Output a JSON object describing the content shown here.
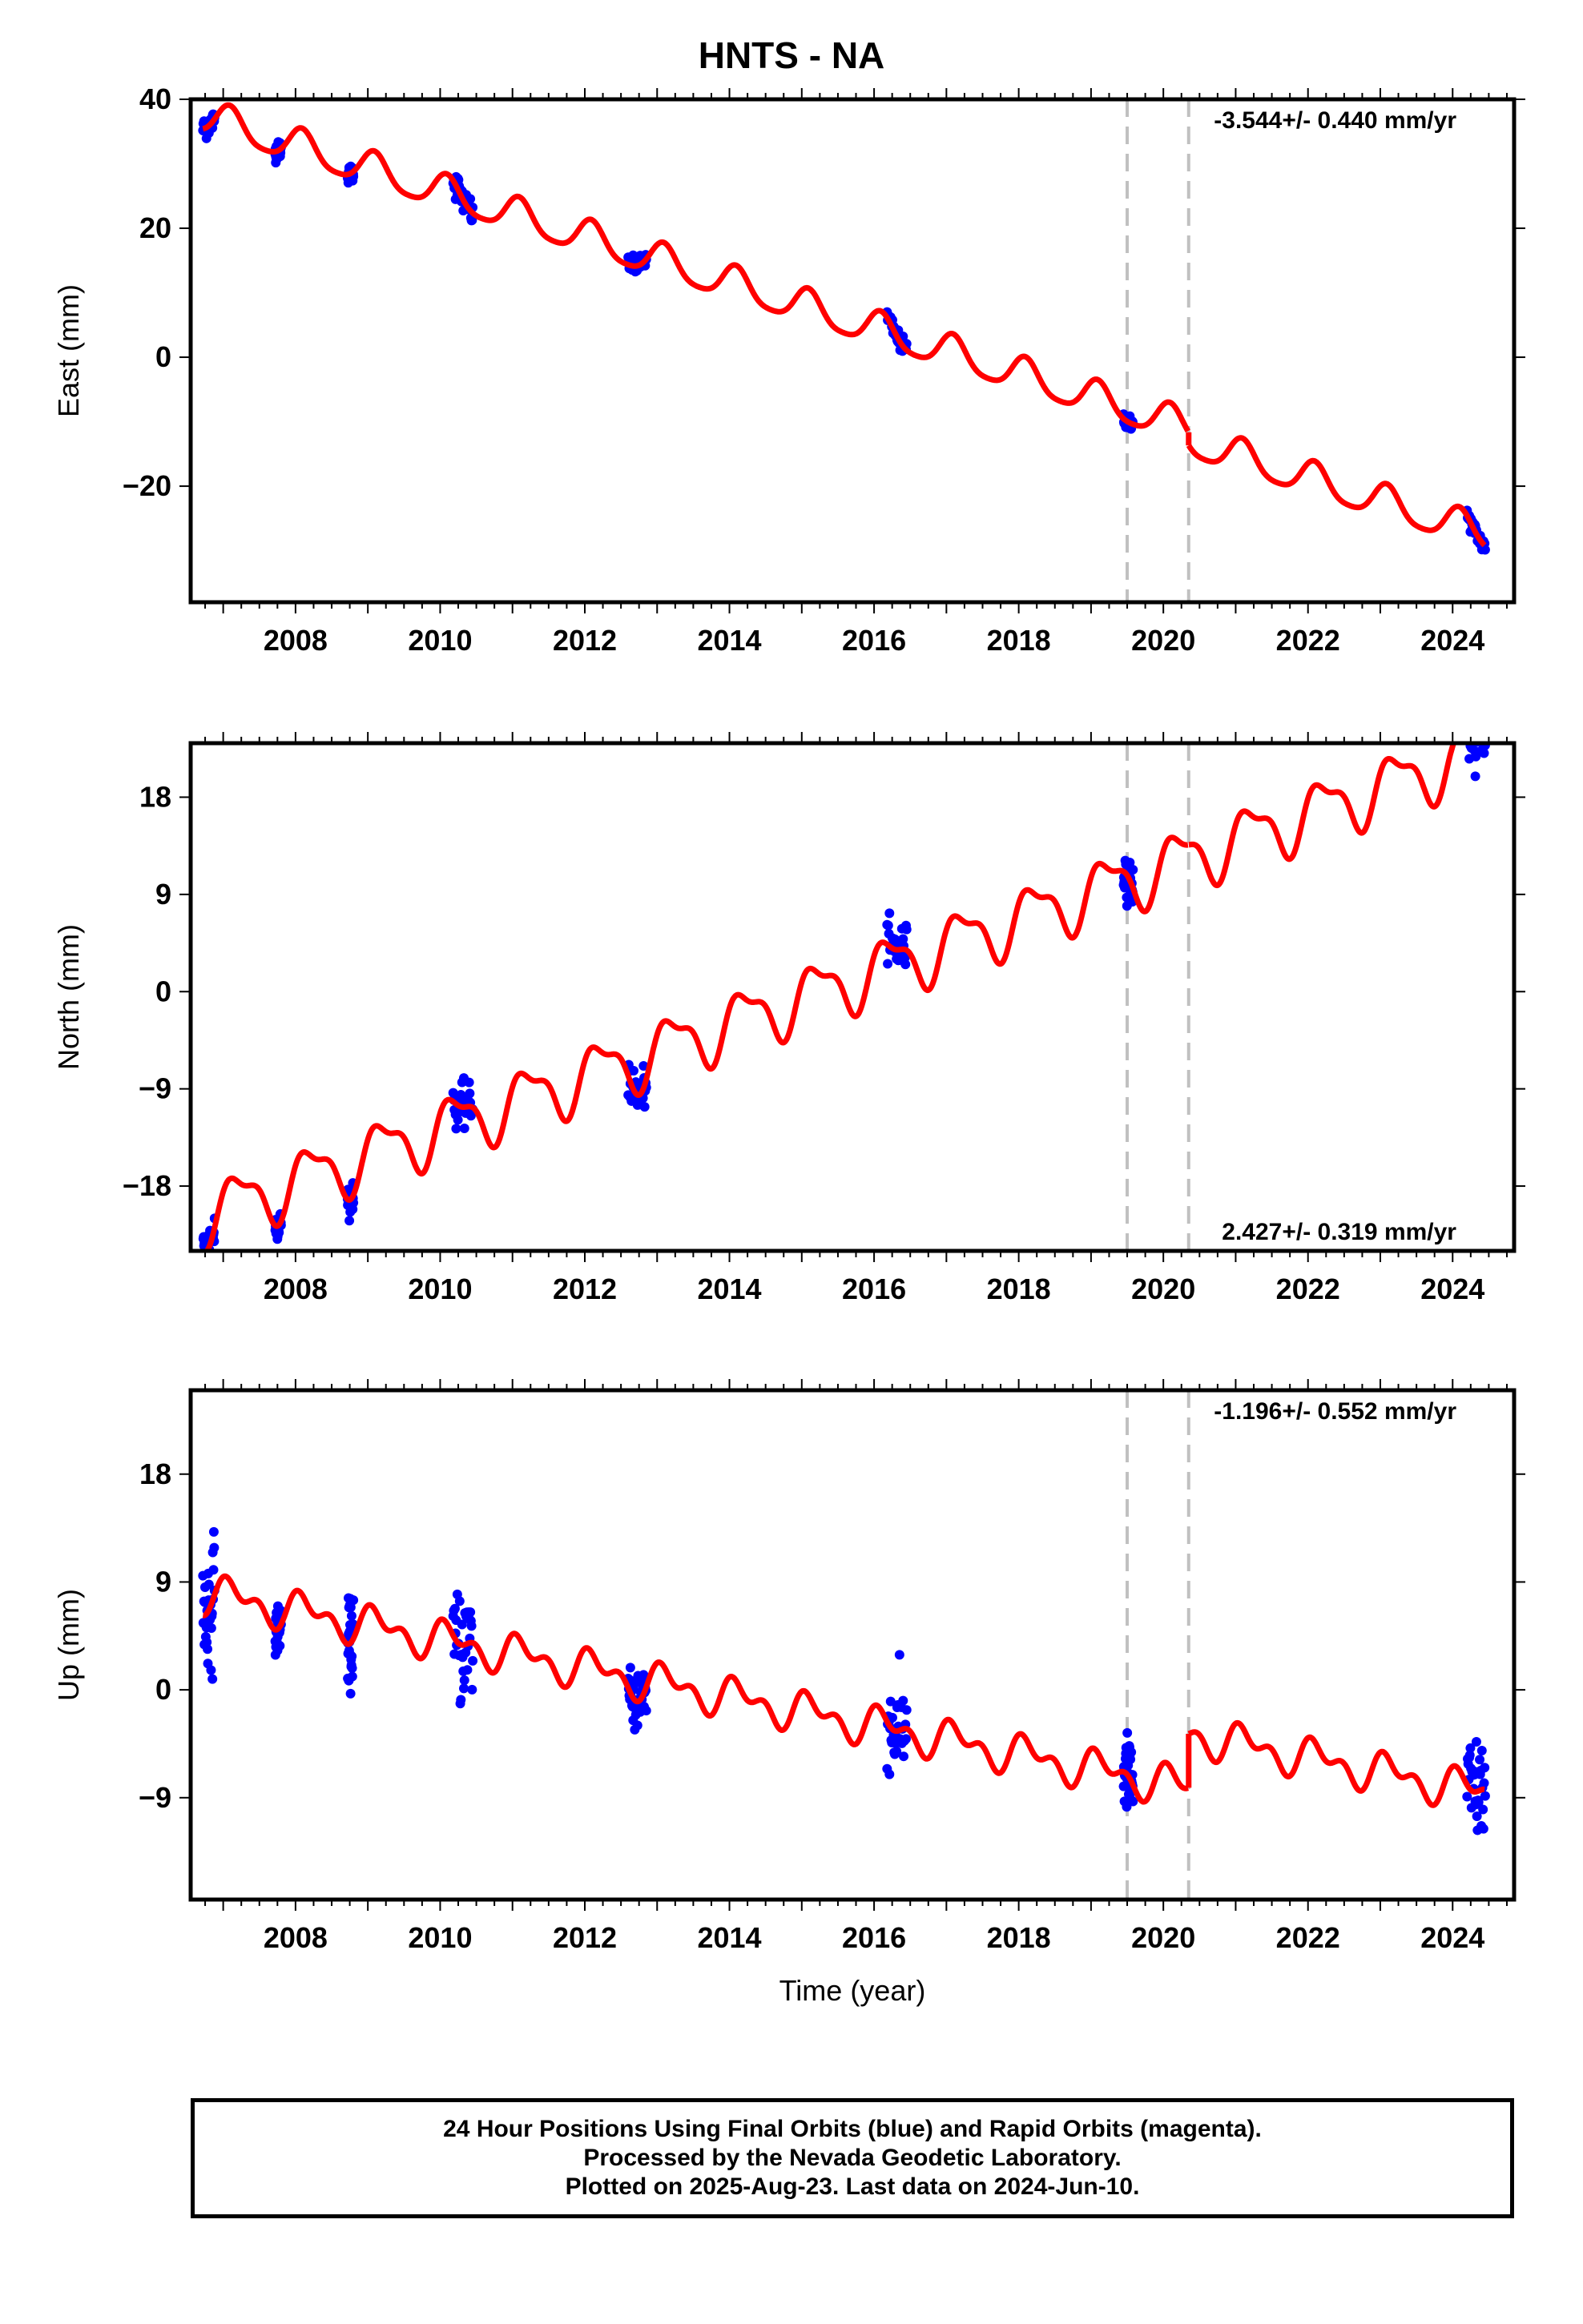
{
  "title": "HNTS - NA",
  "colors": {
    "model": "#ff0000",
    "final_orbits": "#0000ff",
    "breaks": "#c0c0c0",
    "frame": "#000000"
  },
  "chart_data": [
    {
      "type": "scatter",
      "component": "east",
      "ylabel": "East (mm)",
      "xlabel": "",
      "xlim": [
        2006.55,
        2024.85
      ],
      "ylim": [
        -38,
        40
      ],
      "xticks": [
        2008,
        2010,
        2012,
        2014,
        2016,
        2018,
        2020,
        2022,
        2024
      ],
      "xtick_labels": [
        "2008",
        "2010",
        "2012",
        "2014",
        "2016",
        "2018",
        "2020",
        "2022",
        "2024"
      ],
      "yticks": [
        -20,
        0,
        20,
        40
      ],
      "ytick_labels": [
        "−20",
        "0",
        "20",
        "40"
      ],
      "rate_label": "-3.544+/- 0.440 mm/yr",
      "rate_position": "top-right",
      "rate": -3.544,
      "rate_sigma": 0.44,
      "offset_at_2006_8": 37,
      "annual_amplitude": 2.6,
      "annual_phase": 1.0,
      "semiannual_amplitude": 0.5,
      "semiannual_phase": 0.5,
      "step_at_2020_4": -2.0,
      "breaks": [
        2019.5,
        2020.35
      ],
      "data_segments": [
        {
          "x": [
            2006.72,
            2006.88
          ],
          "scatter": 1.5
        },
        {
          "x": [
            2007.72,
            2007.8
          ],
          "scatter": 1.2
        },
        {
          "x": [
            2008.72,
            2008.8
          ],
          "scatter": 1.2
        },
        {
          "x": [
            2010.18,
            2010.45
          ],
          "scatter": 2.0
        },
        {
          "x": [
            2012.6,
            2012.85
          ],
          "scatter": 1.2
        },
        {
          "x": [
            2016.18,
            2016.45
          ],
          "scatter": 1.3
        },
        {
          "x": [
            2019.45,
            2019.58
          ],
          "scatter": 1.0
        },
        {
          "x": [
            2024.2,
            2024.45
          ],
          "scatter": 1.2
        }
      ]
    },
    {
      "type": "scatter",
      "component": "north",
      "ylabel": "North (mm)",
      "xlabel": "",
      "xlim": [
        2006.55,
        2024.85
      ],
      "ylim": [
        -24,
        23
      ],
      "xticks": [
        2008,
        2010,
        2012,
        2014,
        2016,
        2018,
        2020,
        2022,
        2024
      ],
      "xtick_labels": [
        "2008",
        "2010",
        "2012",
        "2014",
        "2016",
        "2018",
        "2020",
        "2022",
        "2024"
      ],
      "yticks": [
        -18,
        -9,
        0,
        9,
        18
      ],
      "ytick_labels": [
        "−18",
        "−9",
        "0",
        "9",
        "18"
      ],
      "rate_label": "2.427+/- 0.319 mm/yr",
      "rate_position": "bottom-right",
      "rate": 2.427,
      "rate_sigma": 0.319,
      "offset_at_2006_8": -20.5,
      "annual_amplitude": 2.6,
      "annual_phase": 0.2,
      "semiannual_amplitude": 1.0,
      "semiannual_phase": 1.3,
      "step_at_2020_4": 0.0,
      "breaks": [
        2019.5,
        2020.35
      ],
      "data_segments": [
        {
          "x": [
            2006.72,
            2006.88
          ],
          "scatter": 2.0
        },
        {
          "x": [
            2007.72,
            2007.8
          ],
          "scatter": 1.0
        },
        {
          "x": [
            2008.72,
            2008.8
          ],
          "scatter": 1.0
        },
        {
          "x": [
            2010.18,
            2010.45
          ],
          "scatter": 1.8
        },
        {
          "x": [
            2012.6,
            2012.85
          ],
          "scatter": 1.8
        },
        {
          "x": [
            2016.18,
            2016.45
          ],
          "scatter": 2.0
        },
        {
          "x": [
            2019.45,
            2019.58
          ],
          "scatter": 1.8
        },
        {
          "x": [
            2024.2,
            2024.45
          ],
          "scatter": 1.8
        }
      ]
    },
    {
      "type": "scatter",
      "component": "up",
      "ylabel": "Up (mm)",
      "xlabel": "Time (year)",
      "xlim": [
        2006.55,
        2024.85
      ],
      "ylim": [
        -17.5,
        25
      ],
      "xticks": [
        2008,
        2010,
        2012,
        2014,
        2016,
        2018,
        2020,
        2022,
        2024
      ],
      "xtick_labels": [
        "2008",
        "2010",
        "2012",
        "2014",
        "2016",
        "2018",
        "2020",
        "2022",
        "2024"
      ],
      "yticks": [
        -9,
        0,
        9,
        18
      ],
      "ytick_labels": [
        "−9",
        "0",
        "9",
        "18"
      ],
      "rate_label": "-1.196+/- 0.552 mm/yr",
      "rate_position": "top-right",
      "rate": -1.196,
      "rate_sigma": 0.552,
      "offset_at_2006_8": 8,
      "annual_amplitude": 1.2,
      "annual_phase": 0.7,
      "semiannual_amplitude": 0.9,
      "semiannual_phase": 1.6,
      "step_at_2020_4": 4.5,
      "breaks": [
        2019.5,
        2020.35
      ],
      "data_segments": [
        {
          "x": [
            2006.72,
            2006.88
          ],
          "scatter": 4.5
        },
        {
          "x": [
            2007.72,
            2007.8
          ],
          "scatter": 1.8
        },
        {
          "x": [
            2008.72,
            2008.8
          ],
          "scatter": 3.0
        },
        {
          "x": [
            2010.18,
            2010.45
          ],
          "scatter": 4.5
        },
        {
          "x": [
            2012.6,
            2012.85
          ],
          "scatter": 3.2
        },
        {
          "x": [
            2016.18,
            2016.45
          ],
          "scatter": 3.5
        },
        {
          "x": [
            2019.45,
            2019.58
          ],
          "scatter": 3.0
        },
        {
          "x": [
            2024.2,
            2024.45
          ],
          "scatter": 4.0
        }
      ]
    }
  ],
  "footer": {
    "line1": "24 Hour Positions Using Final Orbits (blue) and Rapid Orbits (magenta).",
    "line2": "Processed by the Nevada Geodetic Laboratory.",
    "line3": "Plotted on 2025-Aug-23. Last data on 2024-Jun-10."
  }
}
